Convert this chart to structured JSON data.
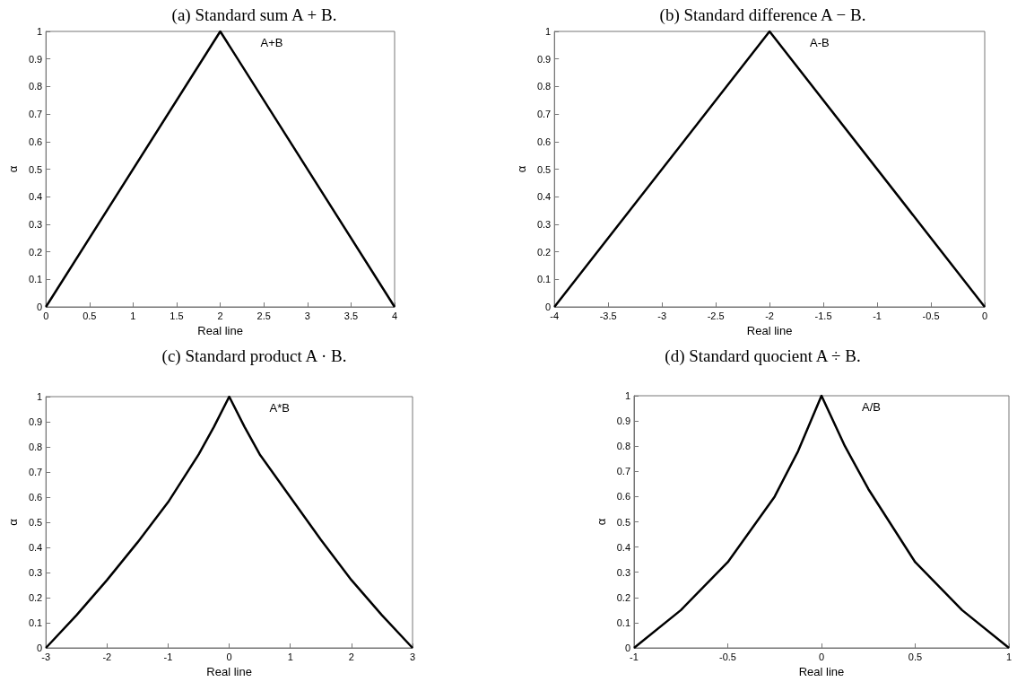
{
  "chart_data": [
    {
      "type": "line",
      "title": "(a) Standard sum A + B.",
      "xlabel": "Real line",
      "ylabel": "α",
      "x": [
        0,
        2,
        4
      ],
      "series": [
        {
          "name": "A+B",
          "color": "#000000",
          "values": [
            0,
            1,
            0
          ]
        }
      ],
      "xlim": [
        0,
        4
      ],
      "xticks": [
        0,
        0.5,
        1,
        1.5,
        2,
        2.5,
        3,
        3.5,
        4
      ],
      "ylim": [
        0,
        1
      ],
      "yticks": [
        0,
        0.1,
        0.2,
        0.3,
        0.4,
        0.5,
        0.6,
        0.7,
        0.8,
        0.9,
        1
      ]
    },
    {
      "type": "line",
      "title": "(b) Standard difference A − B.",
      "xlabel": "Real line",
      "ylabel": "α",
      "x": [
        -4,
        -2,
        0
      ],
      "series": [
        {
          "name": "A-B",
          "color": "#000000",
          "values": [
            0,
            1,
            0
          ]
        }
      ],
      "xlim": [
        -4,
        0
      ],
      "xticks": [
        -4,
        -3.5,
        -3,
        -2.5,
        -2,
        -1.5,
        -1,
        -0.5,
        0
      ],
      "ylim": [
        0,
        1
      ],
      "yticks": [
        0,
        0.1,
        0.2,
        0.3,
        0.4,
        0.5,
        0.6,
        0.7,
        0.8,
        0.9,
        1
      ]
    },
    {
      "type": "line",
      "title": "(c) Standard product A · B.",
      "xlabel": "Real line",
      "ylabel": "α",
      "x": [
        -3,
        -2.5,
        -2,
        -1.5,
        -1,
        -0.5,
        -0.25,
        0,
        0.25,
        0.5,
        1,
        1.5,
        2,
        2.5,
        3
      ],
      "series": [
        {
          "name": "A*B",
          "color": "#000000",
          "values": [
            0,
            0.13,
            0.27,
            0.42,
            0.58,
            0.77,
            0.88,
            1,
            0.88,
            0.77,
            0.6,
            0.43,
            0.27,
            0.13,
            0
          ]
        }
      ],
      "xlim": [
        -3,
        3
      ],
      "xticks": [
        -3,
        -2,
        -1,
        0,
        1,
        2,
        3
      ],
      "ylim": [
        0,
        1
      ],
      "yticks": [
        0,
        0.1,
        0.2,
        0.3,
        0.4,
        0.5,
        0.6,
        0.7,
        0.8,
        0.9,
        1
      ]
    },
    {
      "type": "line",
      "title": "(d) Standard quocient A ÷ B.",
      "xlabel": "Real line",
      "ylabel": "α",
      "x": [
        -1,
        -0.75,
        -0.5,
        -0.25,
        -0.125,
        0,
        0.125,
        0.25,
        0.5,
        0.75,
        1
      ],
      "series": [
        {
          "name": "A/B",
          "color": "#000000",
          "values": [
            0,
            0.15,
            0.34,
            0.6,
            0.78,
            1,
            0.8,
            0.63,
            0.34,
            0.15,
            0
          ]
        }
      ],
      "xlim": [
        -1,
        1
      ],
      "xticks": [
        -1,
        -0.5,
        0,
        0.5,
        1
      ],
      "ylim": [
        0,
        1
      ],
      "yticks": [
        0,
        0.1,
        0.2,
        0.3,
        0.4,
        0.5,
        0.6,
        0.7,
        0.8,
        0.9,
        1
      ]
    }
  ]
}
